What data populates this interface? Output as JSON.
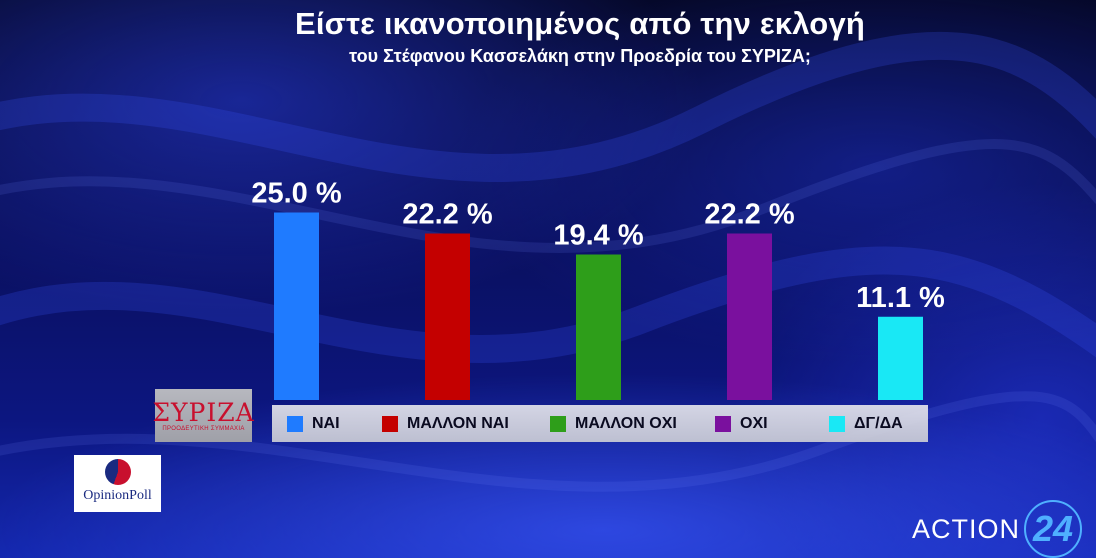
{
  "title": "Είστε ικανοποιημένος από την εκλογή",
  "subtitle": "του Στέφανου Κασσελάκη στην Προεδρία  του ΣΥΡΙΖΑ;",
  "chart_data": {
    "type": "bar",
    "categories": [
      "ΝΑΙ",
      "ΜΑΛΛΟΝ ΝΑΙ",
      "ΜΑΛΛΟΝ ΟΧΙ",
      "ΟΧΙ",
      "ΔΓ/ΔΑ"
    ],
    "values": [
      25.0,
      22.2,
      19.4,
      22.2,
      11.1
    ],
    "value_labels": [
      "25.0 %",
      "22.2 %",
      "19.4 %",
      "22.2 %",
      "11.1 %"
    ],
    "colors": [
      "#1f7bff",
      "#c40000",
      "#2e9e1a",
      "#7a109e",
      "#19e8f5"
    ],
    "title": "Είστε ικανοποιημένος από την εκλογή",
    "subtitle": "του Στέφανου Κασσελάκη στην Προεδρία  του ΣΥΡΙΖΑ;",
    "legend_position": "bottom",
    "grid": false
  },
  "logos": {
    "party": "ΣΥΡΙΖΑ",
    "party_tagline": "ΠΡΟΟΔΕΥΤΙΚΗ ΣΥΜΜΑΧΙΑ",
    "pollster": "OpinionPoll",
    "channel": "ACTION",
    "channel_number": "24"
  }
}
